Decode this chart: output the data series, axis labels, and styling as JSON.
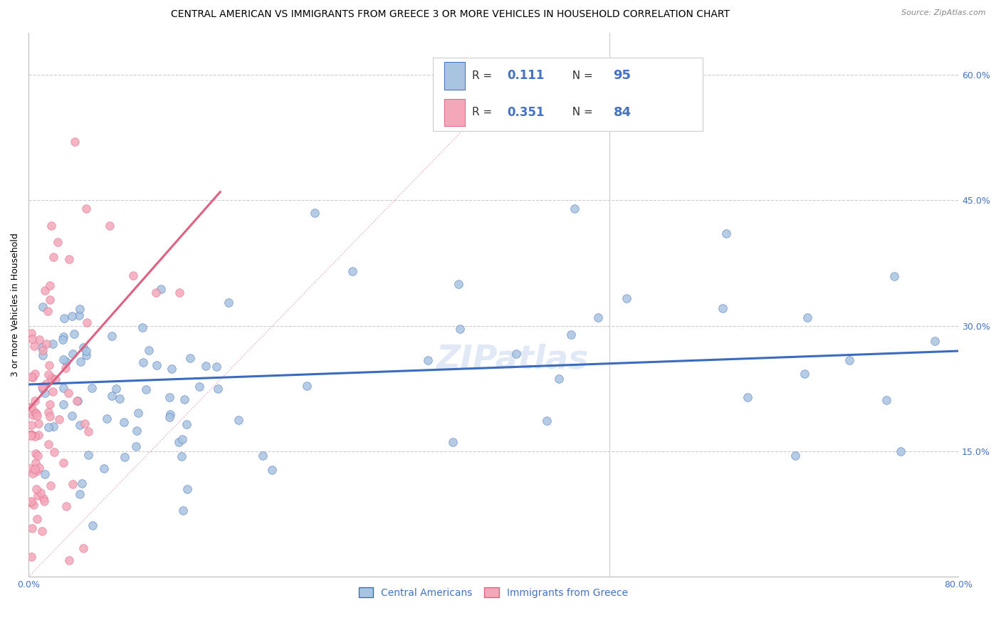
{
  "title": "CENTRAL AMERICAN VS IMMIGRANTS FROM GREECE 3 OR MORE VEHICLES IN HOUSEHOLD CORRELATION CHART",
  "source": "Source: ZipAtlas.com",
  "ylabel": "3 or more Vehicles in Household",
  "xlim": [
    0,
    0.8
  ],
  "ylim": [
    0,
    0.65
  ],
  "x_tick_positions": [
    0.0,
    0.1,
    0.2,
    0.3,
    0.4,
    0.5,
    0.6,
    0.7,
    0.8
  ],
  "x_tick_labels": [
    "0.0%",
    "",
    "",
    "",
    "",
    "",
    "",
    "",
    "80.0%"
  ],
  "y_tick_positions": [
    0.0,
    0.15,
    0.3,
    0.45,
    0.6
  ],
  "y_tick_labels_right": [
    "",
    "15.0%",
    "30.0%",
    "45.0%",
    "60.0%"
  ],
  "blue_R": 0.111,
  "blue_N": 95,
  "pink_R": 0.351,
  "pink_N": 84,
  "blue_color": "#a8c4e0",
  "pink_color": "#f4a7b9",
  "blue_line_color": "#3a6bbf",
  "pink_line_color": "#e06080",
  "diagonal_color": "#e8a0b0",
  "legend_label_blue": "Central Americans",
  "legend_label_pink": "Immigrants from Greece",
  "watermark": "ZIPatlas",
  "title_fontsize": 10,
  "axis_fontsize": 9
}
